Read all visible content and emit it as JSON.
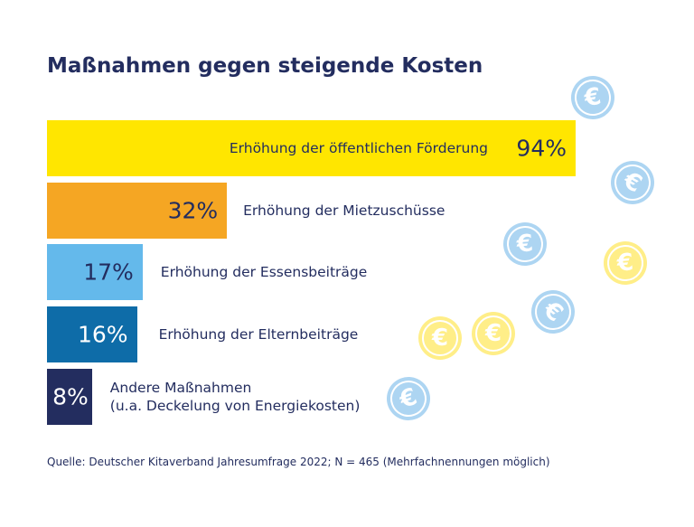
{
  "chart_data": {
    "type": "bar",
    "orientation": "horizontal",
    "title": "Maßnahmen gegen steigende Kosten",
    "categories": [
      "Erhöhung der öffentlichen Förderung",
      "Erhöhung der Mietzuschüsse",
      "Erhöhung der Essensbeiträge",
      "Erhöhung der Elternbeiträge",
      "Andere Maßnahmen (u.a. Deckelung von Energiekosten)"
    ],
    "category_lines": [
      [
        "Erhöhung der öffentlichen Förderung"
      ],
      [
        "Erhöhung der Mietzuschüsse"
      ],
      [
        "Erhöhung der Essensbeiträge"
      ],
      [
        "Erhöhung der Elternbeiträge"
      ],
      [
        "Andere Maßnahmen",
        "(u.a. Deckelung von Energiekosten)"
      ]
    ],
    "values": [
      94,
      32,
      17,
      16,
      8
    ],
    "value_labels": [
      "94%",
      "32%",
      "17%",
      "16%",
      "8%"
    ],
    "colors": [
      "#FFE600",
      "#F5A623",
      "#64B9EB",
      "#0E6CA8",
      "#232D5F"
    ],
    "value_label_colors": [
      "#232D5F",
      "#232D5F",
      "#232D5F",
      "#FFFFFF",
      "#FFFFFF"
    ],
    "unit": "%",
    "xlim": [
      0,
      100
    ],
    "grid": false,
    "source": "Quelle:  Deutscher Kitaverband Jahresumfrage 2022; N = 465 (Mehrfachnennungen möglich)"
  },
  "decoration": {
    "icon": "euro-coin-icon",
    "coin_colors": [
      "#ADD5F2",
      "#FFEE88"
    ]
  }
}
